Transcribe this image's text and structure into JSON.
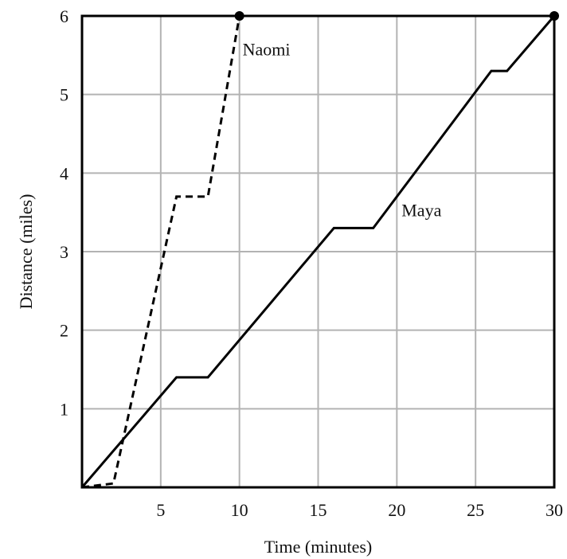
{
  "chart_data": {
    "type": "line",
    "title": "",
    "xlabel": "Time (minutes)",
    "ylabel": "Distance (miles)",
    "xlim": [
      0,
      30
    ],
    "ylim": [
      0,
      6
    ],
    "xticks": [
      5,
      10,
      15,
      20,
      25,
      30
    ],
    "yticks": [
      1,
      2,
      3,
      4,
      5,
      6
    ],
    "grid": true,
    "legend": "none",
    "series": [
      {
        "name": "Naomi",
        "line_style": "dashed",
        "color": "#000000",
        "x": [
          0,
          2,
          6,
          8,
          10
        ],
        "y": [
          0,
          0.05,
          3.7,
          3.7,
          6
        ],
        "endpoint_marker": true
      },
      {
        "name": "Maya",
        "line_style": "solid",
        "color": "#000000",
        "x": [
          0,
          6,
          8,
          16,
          18.5,
          26,
          27,
          30
        ],
        "y": [
          0,
          1.4,
          1.4,
          3.3,
          3.3,
          5.3,
          5.3,
          6
        ],
        "endpoint_marker": true
      }
    ]
  }
}
